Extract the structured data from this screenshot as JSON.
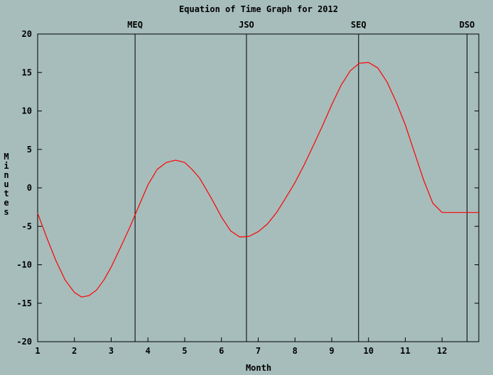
{
  "chart_data": {
    "type": "line",
    "title": "Equation of Time Graph for 2012",
    "xlabel": "Month",
    "ylabel": "Minutes",
    "xlim": [
      1,
      13
    ],
    "ylim": [
      -20,
      20
    ],
    "x_ticks": [
      1,
      2,
      3,
      4,
      5,
      6,
      7,
      8,
      9,
      10,
      11,
      12
    ],
    "y_ticks": [
      -20,
      -15,
      -10,
      -5,
      0,
      5,
      10,
      15,
      20
    ],
    "grid": false,
    "line_color": "#ff0000",
    "markers": [
      {
        "label": "MEQ",
        "x": 3.65
      },
      {
        "label": "JSO",
        "x": 6.68
      },
      {
        "label": "SEQ",
        "x": 9.73
      },
      {
        "label": "DSO",
        "x": 12.68
      }
    ],
    "series": [
      {
        "x": [
          1.0,
          1.25,
          1.5,
          1.75,
          2.0,
          2.2,
          2.4,
          2.6,
          2.8,
          3.0,
          3.25,
          3.5,
          3.75,
          4.0,
          4.25,
          4.5,
          4.75,
          5.0,
          5.2,
          5.4,
          5.6,
          5.8,
          6.0,
          6.25,
          6.5,
          6.75,
          7.0,
          7.25,
          7.5,
          7.75,
          8.0,
          8.25,
          8.5,
          8.75,
          9.0,
          9.25,
          9.5,
          9.75,
          10.0,
          10.25,
          10.5,
          10.75,
          11.0,
          11.25,
          11.5,
          11.75,
          12.0,
          12.25,
          12.5,
          12.75,
          13.0
        ],
        "y": [
          -3.3,
          -6.5,
          -9.5,
          -12.0,
          -13.6,
          -14.2,
          -14.0,
          -13.3,
          -12.0,
          -10.3,
          -7.8,
          -5.2,
          -2.4,
          0.4,
          2.4,
          3.3,
          3.6,
          3.3,
          2.4,
          1.3,
          -0.3,
          -2.0,
          -3.8,
          -5.6,
          -6.4,
          -6.3,
          -5.7,
          -4.7,
          -3.2,
          -1.3,
          0.7,
          3.0,
          5.5,
          8.1,
          10.8,
          13.3,
          15.2,
          16.2,
          16.3,
          15.6,
          13.8,
          11.2,
          8.2,
          4.6,
          1.0,
          -2.0,
          -3.2,
          -3.2,
          -3.2,
          -3.2,
          -3.2
        ]
      }
    ]
  }
}
